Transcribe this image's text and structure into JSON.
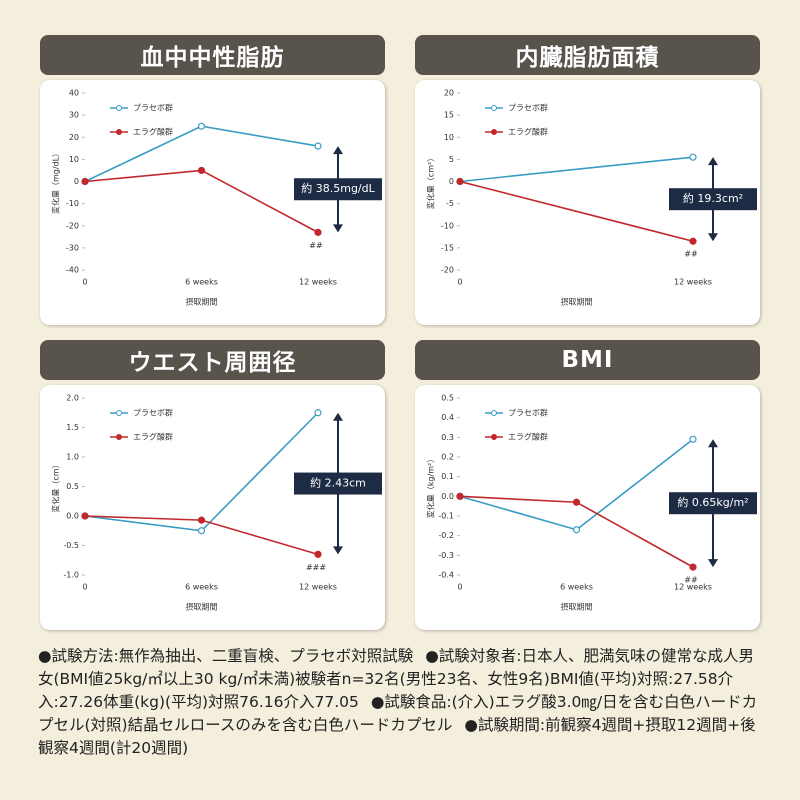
{
  "chart_data": [
    {
      "type": "line",
      "title": "血中中性脂肪",
      "y_label": "変化量（mg/dL）",
      "x_label": "摂取期間",
      "categories": [
        "0",
        "6 weeks",
        "12 weeks"
      ],
      "series": [
        {
          "name": "プラセボ群",
          "color": "#3a9cc4",
          "values": [
            0,
            25,
            16
          ]
        },
        {
          "name": "エラグ酸群",
          "color": "#c0282c",
          "values": [
            0,
            5,
            -23
          ]
        }
      ],
      "ylim": [
        -40,
        40
      ],
      "yticks": [
        -40,
        -30,
        -20,
        -10,
        0,
        10,
        20,
        30,
        40
      ],
      "annotation": "約 38.5mg/dL",
      "significance": "##"
    },
    {
      "type": "line",
      "title": "内臓脂肪面積",
      "y_label": "変化量（cm²）",
      "x_label": "摂取期間",
      "categories": [
        "0",
        "12 weeks"
      ],
      "series": [
        {
          "name": "プラセボ群",
          "color": "#3a9cc4",
          "values": [
            0,
            5.5
          ]
        },
        {
          "name": "エラグ酸群",
          "color": "#c0282c",
          "values": [
            0,
            -13.5
          ]
        }
      ],
      "ylim": [
        -20,
        20
      ],
      "yticks": [
        -20,
        -15,
        -10,
        -5,
        0,
        5,
        10,
        15,
        20
      ],
      "annotation": "約 19.3cm²",
      "significance": "##"
    },
    {
      "type": "line",
      "title": "ウエスト周囲径",
      "y_label": "変化量（cm）",
      "x_label": "摂取期間",
      "categories": [
        "0",
        "6 weeks",
        "12 weeks"
      ],
      "series": [
        {
          "name": "プラセボ群",
          "color": "#3a9cc4",
          "values": [
            0,
            -0.25,
            1.75
          ]
        },
        {
          "name": "エラグ酸群",
          "color": "#c0282c",
          "values": [
            0,
            -0.07,
            -0.65
          ]
        }
      ],
      "ylim": [
        -1.0,
        2.0
      ],
      "yticks": [
        {
          "value": -1,
          "label": "-1.0"
        },
        -0.5,
        {
          "value": 0,
          "label": "0.0"
        },
        0.5,
        {
          "value": 1,
          "label": "1.0"
        },
        1.5,
        {
          "value": 2,
          "label": "2.0"
        }
      ],
      "annotation": "約 2.43cm",
      "significance": "###"
    },
    {
      "type": "line",
      "title": "BMI",
      "y_label": "変化量（kg/m²）",
      "x_label": "摂取期間",
      "categories": [
        "0",
        "6 weeks",
        "12 weeks"
      ],
      "series": [
        {
          "name": "プラセボ群",
          "color": "#3a9cc4",
          "values": [
            0,
            -0.17,
            0.29
          ]
        },
        {
          "name": "エラグ酸群",
          "color": "#c0282c",
          "values": [
            0,
            -0.03,
            -0.36
          ]
        }
      ],
      "ylim": [
        -0.4,
        0.5
      ],
      "yticks": [
        -0.4,
        -0.3,
        -0.2,
        -0.1,
        {
          "value": 0,
          "label": "0.0"
        },
        0.1,
        0.2,
        0.3,
        0.4,
        0.5
      ],
      "annotation": "約 0.65kg/m²",
      "significance": "##"
    }
  ],
  "notes": [
    "●試験方法:無作為抽出、二重盲検、プラセボ対照試験",
    "●試験対象者:日本人、肥満気味の健常な成人男女(BMI値25kg/㎡以上30 kg/㎡未満)被験者n=32名(男性23名、女性9名)BMI値(平均)対照:27.58介入:27.26体重(kg)(平均)対照76.16介入77.05",
    "●試験食品:(介入)エラグ酸3.0㎎/日を含む白色ハードカプセル(対照)結晶セルロースのみを含む白色ハードカプセル",
    "●試験期間:前観察4週間+摂取12週間+後観察4週間(計20週間)"
  ]
}
